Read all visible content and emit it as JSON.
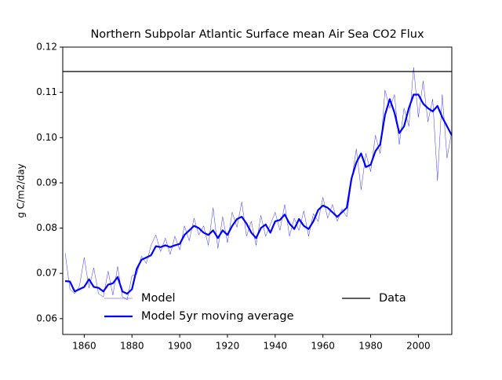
{
  "chart_data": {
    "type": "line",
    "title": "Northern Subpolar Atlantic Surface mean Air Sea CO2 Flux",
    "ylabel": "g C/m2/day",
    "x": [
      1852,
      1854,
      1856,
      1858,
      1860,
      1862,
      1864,
      1866,
      1868,
      1870,
      1872,
      1874,
      1876,
      1878,
      1880,
      1882,
      1884,
      1886,
      1888,
      1890,
      1892,
      1894,
      1896,
      1898,
      1900,
      1902,
      1904,
      1906,
      1908,
      1910,
      1912,
      1914,
      1916,
      1918,
      1920,
      1922,
      1924,
      1926,
      1928,
      1930,
      1932,
      1934,
      1936,
      1938,
      1940,
      1942,
      1944,
      1946,
      1948,
      1950,
      1952,
      1954,
      1956,
      1958,
      1960,
      1962,
      1964,
      1966,
      1968,
      1970,
      1972,
      1974,
      1976,
      1978,
      1980,
      1982,
      1984,
      1986,
      1988,
      1990,
      1992,
      1994,
      1996,
      1998,
      2000,
      2002,
      2004,
      2006,
      2008,
      2010,
      2012,
      2014
    ],
    "series": [
      {
        "name": "Model",
        "color": "#0000ff",
        "width": 0.4,
        "values": [
          0.0745,
          0.0665,
          0.0655,
          0.0672,
          0.0735,
          0.0668,
          0.0712,
          0.0655,
          0.0648,
          0.0705,
          0.0652,
          0.0715,
          0.0648,
          0.0642,
          0.0695,
          0.0698,
          0.0738,
          0.0722,
          0.0762,
          0.0785,
          0.0748,
          0.0778,
          0.0742,
          0.0782,
          0.0752,
          0.0805,
          0.0772,
          0.0822,
          0.0785,
          0.0805,
          0.0762,
          0.0845,
          0.0755,
          0.0825,
          0.0768,
          0.0835,
          0.0802,
          0.0858,
          0.0782,
          0.0815,
          0.0762,
          0.0828,
          0.0782,
          0.0808,
          0.0835,
          0.0795,
          0.0852,
          0.0782,
          0.0822,
          0.0795,
          0.0838,
          0.0782,
          0.0832,
          0.0815,
          0.0868,
          0.0822,
          0.0852,
          0.0815,
          0.0842,
          0.0825,
          0.0905,
          0.0975,
          0.0885,
          0.0965,
          0.0925,
          0.1005,
          0.0965,
          0.1105,
          0.1065,
          0.1095,
          0.0985,
          0.1065,
          0.1025,
          0.1155,
          0.1045,
          0.1125,
          0.1035,
          0.1085,
          0.0905,
          0.1095,
          0.0955,
          0.1015
        ]
      },
      {
        "name": "Model 5yr moving average",
        "color": "#0000ff",
        "width": 2.2,
        "values": [
          0.0683,
          0.0682,
          0.066,
          0.0665,
          0.067,
          0.0687,
          0.067,
          0.0668,
          0.066,
          0.0675,
          0.0678,
          0.0692,
          0.066,
          0.0655,
          0.0665,
          0.071,
          0.073,
          0.0735,
          0.074,
          0.076,
          0.0758,
          0.0762,
          0.0758,
          0.0762,
          0.0765,
          0.0785,
          0.0795,
          0.0805,
          0.08,
          0.079,
          0.0785,
          0.0795,
          0.0778,
          0.0795,
          0.0785,
          0.0805,
          0.082,
          0.0825,
          0.081,
          0.079,
          0.0778,
          0.08,
          0.0808,
          0.079,
          0.0815,
          0.0818,
          0.083,
          0.081,
          0.0798,
          0.082,
          0.0805,
          0.0798,
          0.0815,
          0.084,
          0.085,
          0.0845,
          0.0835,
          0.0825,
          0.0835,
          0.0845,
          0.091,
          0.0945,
          0.0965,
          0.0935,
          0.094,
          0.097,
          0.0985,
          0.105,
          0.1085,
          0.1055,
          0.101,
          0.1025,
          0.1065,
          0.1095,
          0.1095,
          0.1075,
          0.1065,
          0.1058,
          0.107,
          0.1045,
          0.1025,
          0.1005
        ]
      }
    ],
    "hline": {
      "name": "Data",
      "value": 0.1146,
      "color": "#000000"
    },
    "xlim": [
      1851,
      2014
    ],
    "ylim": [
      0.0565,
      0.12
    ],
    "xticks": [
      1860,
      1880,
      1900,
      1920,
      1940,
      1960,
      1980,
      2000
    ],
    "yticks": [
      0.06,
      0.07,
      0.08,
      0.09,
      {
        "value": 0.1,
        "label": "0.10"
      },
      0.11,
      0.12
    ],
    "legend": "lower center"
  }
}
